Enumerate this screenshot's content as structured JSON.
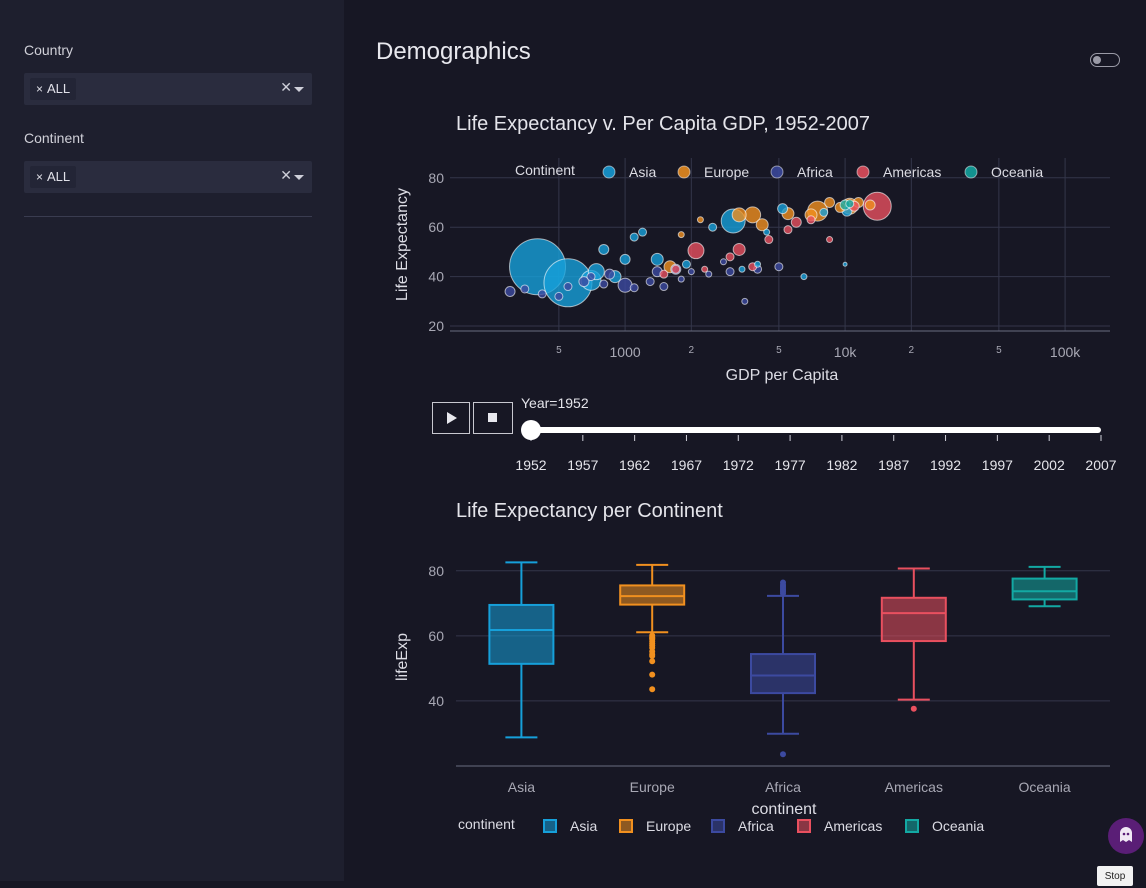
{
  "sidebar": {
    "country_label": "Country",
    "country_value": "ALL",
    "continent_label": "Continent",
    "continent_value": "ALL"
  },
  "page": {
    "title": "Demographics",
    "stop_label": "Stop"
  },
  "colors": {
    "Asia": "#16a0da",
    "Europe": "#f1901f",
    "Africa": "#3c4aa0",
    "Americas": "#e9505f",
    "Oceania": "#13a9a3"
  },
  "animation": {
    "play_icon": "play-icon",
    "stop_icon": "stop-square-icon",
    "current_label": "Year=1952",
    "current_year": 1952,
    "years": [
      "1952",
      "1957",
      "1962",
      "1967",
      "1972",
      "1977",
      "1982",
      "1987",
      "1992",
      "1997",
      "2002",
      "2007"
    ]
  },
  "chart_data": [
    {
      "type": "scatter",
      "title": "Life Expectancy v. Per Capita GDP, 1952-2007",
      "xlabel": "GDP per Capita",
      "ylabel": "Life Expectancy",
      "x_scale": "log",
      "xlim": [
        160,
        160000
      ],
      "ylim": [
        18,
        88
      ],
      "x_ticks": [
        {
          "v": 500,
          "label": "5"
        },
        {
          "v": 1000,
          "label": "1000"
        },
        {
          "v": 2000,
          "label": "2"
        },
        {
          "v": 5000,
          "label": "5"
        },
        {
          "v": 10000,
          "label": "10k"
        },
        {
          "v": 20000,
          "label": "2"
        },
        {
          "v": 50000,
          "label": "5"
        },
        {
          "v": 100000,
          "label": "100k"
        }
      ],
      "y_ticks": [
        20,
        40,
        60,
        80
      ],
      "legend_title": "Continent",
      "legend_position": "top",
      "series": [
        {
          "name": "Asia",
          "points": [
            {
              "x": 400,
              "y": 44,
              "s": 28
            },
            {
              "x": 550,
              "y": 37.5,
              "s": 24
            },
            {
              "x": 700,
              "y": 38.5,
              "s": 10
            },
            {
              "x": 740,
              "y": 42,
              "s": 8
            },
            {
              "x": 800,
              "y": 51,
              "s": 5
            },
            {
              "x": 900,
              "y": 40,
              "s": 6
            },
            {
              "x": 1000,
              "y": 47,
              "s": 5
            },
            {
              "x": 1100,
              "y": 56,
              "s": 4
            },
            {
              "x": 1200,
              "y": 58,
              "s": 4
            },
            {
              "x": 1400,
              "y": 47,
              "s": 6
            },
            {
              "x": 1900,
              "y": 45,
              "s": 4
            },
            {
              "x": 2500,
              "y": 60,
              "s": 4
            },
            {
              "x": 3100,
              "y": 62.5,
              "s": 12
            },
            {
              "x": 3400,
              "y": 43,
              "s": 3
            },
            {
              "x": 4000,
              "y": 45,
              "s": 3
            },
            {
              "x": 4400,
              "y": 58,
              "s": 3
            },
            {
              "x": 5200,
              "y": 67.5,
              "s": 5
            },
            {
              "x": 6500,
              "y": 40,
              "s": 3
            },
            {
              "x": 8000,
              "y": 66,
              "s": 4
            },
            {
              "x": 10200,
              "y": 66.5,
              "s": 5
            },
            {
              "x": 10000,
              "y": 45,
              "s": 2
            }
          ]
        },
        {
          "name": "Europe",
          "points": [
            {
              "x": 1600,
              "y": 44,
              "s": 6
            },
            {
              "x": 1800,
              "y": 57,
              "s": 3
            },
            {
              "x": 2200,
              "y": 63,
              "s": 3
            },
            {
              "x": 3300,
              "y": 65,
              "s": 7
            },
            {
              "x": 3800,
              "y": 65,
              "s": 8
            },
            {
              "x": 4200,
              "y": 61,
              "s": 6
            },
            {
              "x": 5500,
              "y": 65.5,
              "s": 6
            },
            {
              "x": 7000,
              "y": 65,
              "s": 6
            },
            {
              "x": 7500,
              "y": 66.5,
              "s": 10
            },
            {
              "x": 8500,
              "y": 70,
              "s": 5
            },
            {
              "x": 9500,
              "y": 68,
              "s": 5
            },
            {
              "x": 10500,
              "y": 68.5,
              "s": 8
            },
            {
              "x": 11500,
              "y": 70,
              "s": 5
            },
            {
              "x": 13000,
              "y": 69,
              "s": 5
            }
          ]
        },
        {
          "name": "Africa",
          "points": [
            {
              "x": 300,
              "y": 34,
              "s": 5
            },
            {
              "x": 350,
              "y": 35,
              "s": 4
            },
            {
              "x": 420,
              "y": 33,
              "s": 4
            },
            {
              "x": 500,
              "y": 32,
              "s": 4
            },
            {
              "x": 550,
              "y": 36,
              "s": 4
            },
            {
              "x": 650,
              "y": 38,
              "s": 5
            },
            {
              "x": 700,
              "y": 40,
              "s": 4
            },
            {
              "x": 800,
              "y": 37,
              "s": 4
            },
            {
              "x": 850,
              "y": 41,
              "s": 5
            },
            {
              "x": 1000,
              "y": 36.5,
              "s": 7
            },
            {
              "x": 1100,
              "y": 35.5,
              "s": 4
            },
            {
              "x": 1300,
              "y": 38,
              "s": 4
            },
            {
              "x": 1400,
              "y": 42,
              "s": 5
            },
            {
              "x": 1500,
              "y": 36,
              "s": 4
            },
            {
              "x": 1700,
              "y": 43,
              "s": 5
            },
            {
              "x": 1800,
              "y": 39,
              "s": 3
            },
            {
              "x": 2000,
              "y": 42,
              "s": 3
            },
            {
              "x": 2400,
              "y": 41,
              "s": 3
            },
            {
              "x": 3000,
              "y": 42,
              "s": 4
            },
            {
              "x": 3500,
              "y": 30,
              "s": 3
            },
            {
              "x": 4000,
              "y": 43,
              "s": 4
            },
            {
              "x": 5000,
              "y": 44,
              "s": 4
            },
            {
              "x": 2800,
              "y": 46,
              "s": 3
            }
          ]
        },
        {
          "name": "Americas",
          "points": [
            {
              "x": 1500,
              "y": 41,
              "s": 4
            },
            {
              "x": 1700,
              "y": 43,
              "s": 4
            },
            {
              "x": 2100,
              "y": 50.5,
              "s": 8
            },
            {
              "x": 2300,
              "y": 43,
              "s": 3
            },
            {
              "x": 3000,
              "y": 48,
              "s": 4
            },
            {
              "x": 3300,
              "y": 51,
              "s": 6
            },
            {
              "x": 3800,
              "y": 44,
              "s": 4
            },
            {
              "x": 4500,
              "y": 55,
              "s": 4
            },
            {
              "x": 5500,
              "y": 59,
              "s": 4
            },
            {
              "x": 6000,
              "y": 62,
              "s": 5
            },
            {
              "x": 7000,
              "y": 63,
              "s": 4
            },
            {
              "x": 8500,
              "y": 55,
              "s": 3
            },
            {
              "x": 11000,
              "y": 68.5,
              "s": 5
            },
            {
              "x": 14000,
              "y": 68.5,
              "s": 14
            }
          ]
        },
        {
          "name": "Oceania",
          "points": [
            {
              "x": 10000,
              "y": 69,
              "s": 5
            },
            {
              "x": 10500,
              "y": 69.5,
              "s": 4
            }
          ]
        }
      ]
    },
    {
      "type": "box",
      "title": "Life Expectancy per Continent",
      "xlabel": "continent",
      "ylabel": "lifeExp",
      "ylim": [
        20,
        87
      ],
      "y_ticks": [
        40,
        60,
        80
      ],
      "legend_title": "continent",
      "legend_position": "bottom",
      "categories": [
        "Asia",
        "Europe",
        "Africa",
        "Americas",
        "Oceania"
      ],
      "boxes": [
        {
          "name": "Asia",
          "min": 28.8,
          "q1": 51.4,
          "median": 61.8,
          "q3": 69.5,
          "max": 82.6,
          "outliers": []
        },
        {
          "name": "Europe",
          "min": 61.1,
          "q1": 69.6,
          "median": 72.2,
          "q3": 75.5,
          "max": 81.8,
          "outliers": [
            43.6,
            48.1,
            52.2,
            53.8,
            54.3,
            55.2,
            56.3,
            57.0,
            57.6,
            58.3,
            59.0,
            59.3,
            59.6,
            60.1
          ]
        },
        {
          "name": "Africa",
          "min": 29.9,
          "q1": 42.4,
          "median": 47.8,
          "q3": 54.4,
          "max": 72.3,
          "outliers": [
            23.6,
            73.0,
            73.6,
            74.0,
            74.3,
            74.8,
            75.3,
            75.7,
            76.4
          ]
        },
        {
          "name": "Americas",
          "min": 40.4,
          "q1": 58.4,
          "median": 67.0,
          "q3": 71.7,
          "max": 80.7,
          "outliers": [
            37.6
          ]
        },
        {
          "name": "Oceania",
          "min": 69.1,
          "q1": 71.2,
          "median": 73.7,
          "q3": 77.6,
          "max": 81.2,
          "outliers": []
        }
      ]
    }
  ]
}
